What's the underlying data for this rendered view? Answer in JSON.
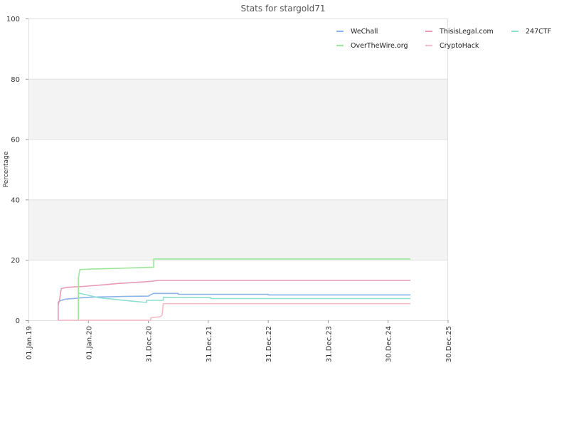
{
  "chart_data": {
    "type": "line",
    "title": "Stats for stargold71",
    "xlabel": "",
    "ylabel": "Percentage",
    "ylim": [
      0,
      100
    ],
    "yticks": [
      0,
      20,
      40,
      60,
      80,
      100
    ],
    "xlim": [
      "2019-01-01",
      "2025-12-30"
    ],
    "xticks": [
      {
        "date": "2019-01-01",
        "label": "01.Jan.19"
      },
      {
        "date": "2020-01-01",
        "label": "01.Jan.20"
      },
      {
        "date": "2020-12-31",
        "label": "31.Dec.20"
      },
      {
        "date": "2021-12-31",
        "label": "31.Dec.21"
      },
      {
        "date": "2022-12-31",
        "label": "31.Dec.22"
      },
      {
        "date": "2023-12-31",
        "label": "31.Dec.23"
      },
      {
        "date": "2024-12-30",
        "label": "30.Dec.24"
      },
      {
        "date": "2025-12-30",
        "label": "30.Dec.25"
      }
    ],
    "grid": true,
    "legend_position": "top-right",
    "series": [
      {
        "name": "WeChall",
        "color": "#8ab4e8",
        "points": [
          [
            "2019-07-01",
            0
          ],
          [
            "2019-07-01",
            6
          ],
          [
            "2019-07-15",
            6.5
          ],
          [
            "2019-08-15",
            7
          ],
          [
            "2019-10-01",
            7.2
          ],
          [
            "2019-12-01",
            7.5
          ],
          [
            "2020-02-01",
            7.7
          ],
          [
            "2020-06-01",
            7.8
          ],
          [
            "2020-08-01",
            7.9
          ],
          [
            "2021-01-01",
            8
          ],
          [
            "2021-01-15",
            8.5
          ],
          [
            "2021-02-01",
            8.9
          ],
          [
            "2021-07-01",
            8.9
          ],
          [
            "2021-07-01",
            8.6
          ],
          [
            "2022-12-31",
            8.6
          ],
          [
            "2022-12-31",
            8.4
          ],
          [
            "2025-05-15",
            8.4
          ]
        ]
      },
      {
        "name": "ThisisLegal.com",
        "color": "#e89ab8",
        "points": [
          [
            "2019-07-01",
            0
          ],
          [
            "2019-07-01",
            5
          ],
          [
            "2019-07-10",
            7
          ],
          [
            "2019-07-20",
            10.5
          ],
          [
            "2019-08-15",
            10.8
          ],
          [
            "2019-09-15",
            11
          ],
          [
            "2019-12-01",
            11.2
          ],
          [
            "2020-03-01",
            11.6
          ],
          [
            "2020-07-01",
            12.2
          ],
          [
            "2020-11-01",
            12.6
          ],
          [
            "2021-01-15",
            12.9
          ],
          [
            "2021-03-01",
            13.2
          ],
          [
            "2025-05-15",
            13.2
          ]
        ]
      },
      {
        "name": "247CTF",
        "color": "#8ee0d0",
        "points": [
          [
            "2019-11-01",
            0
          ],
          [
            "2019-11-01",
            9
          ],
          [
            "2019-12-15",
            8.5
          ],
          [
            "2020-03-01",
            7.5
          ],
          [
            "2020-07-01",
            6.8
          ],
          [
            "2020-10-01",
            6.3
          ],
          [
            "2020-12-20",
            5.9
          ],
          [
            "2020-12-20",
            6.6
          ],
          [
            "2021-04-01",
            6.6
          ],
          [
            "2021-04-01",
            7.6
          ],
          [
            "2022-01-15",
            7.5
          ],
          [
            "2022-01-15",
            7.2
          ],
          [
            "2025-05-15",
            7.2
          ]
        ]
      },
      {
        "name": "OverTheWire.org",
        "color": "#9ee69a",
        "points": [
          [
            "2019-11-01",
            0
          ],
          [
            "2019-11-01",
            14
          ],
          [
            "2019-11-10",
            16.8
          ],
          [
            "2020-02-01",
            17
          ],
          [
            "2020-07-01",
            17.2
          ],
          [
            "2021-02-01",
            17.6
          ],
          [
            "2021-02-01",
            20.3
          ],
          [
            "2025-05-15",
            20.3
          ]
        ]
      },
      {
        "name": "CryptoHack",
        "color": "#f6bcc8",
        "points": [
          [
            "2019-07-01",
            0
          ],
          [
            "2021-01-15",
            0
          ],
          [
            "2021-01-15",
            0.8
          ],
          [
            "2021-03-15",
            1.2
          ],
          [
            "2021-03-25",
            1.8
          ],
          [
            "2021-04-01",
            5.5
          ],
          [
            "2025-05-15",
            5.5
          ]
        ]
      }
    ]
  }
}
